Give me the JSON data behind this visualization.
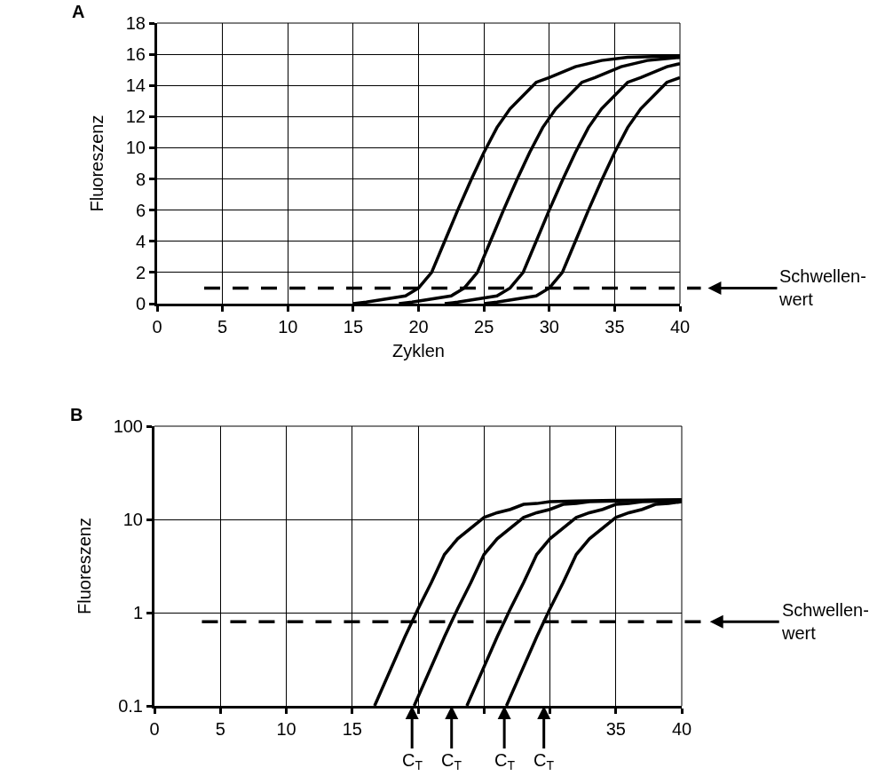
{
  "chart_data": [
    {
      "type": "line",
      "annotations": [
        "A"
      ],
      "xlabel": "Zyklen",
      "ylabel": "Fluoreszenz",
      "xlim": [
        0,
        40
      ],
      "ylim": [
        0,
        18
      ],
      "xticks": [
        0,
        5,
        10,
        15,
        20,
        25,
        30,
        35,
        40
      ],
      "yticks": [
        0,
        2,
        4,
        6,
        8,
        10,
        12,
        14,
        16,
        18
      ],
      "grid": true,
      "marker": "none",
      "line_style": "solid",
      "ref_lines": [
        {
          "axis": "y",
          "value": 1,
          "label": "Schwellen-\nwert",
          "line_style": "dashed",
          "color": "#000000"
        }
      ],
      "series": [
        {
          "color": "#000000",
          "x": [
            15,
            16,
            19,
            20,
            21,
            22,
            23,
            24,
            25,
            26,
            27,
            29,
            30,
            32,
            34,
            36,
            40
          ],
          "values": [
            0,
            0.1,
            0.5,
            1,
            2,
            4,
            6,
            7.9,
            9.7,
            11.3,
            12.5,
            14.2,
            14.5,
            15.2,
            15.6,
            15.8,
            15.9
          ]
        },
        {
          "color": "#000000",
          "x": [
            18.5,
            19.5,
            22.5,
            23.5,
            24.5,
            25.5,
            26.5,
            27.5,
            28.5,
            29.5,
            30.5,
            32.5,
            33.5,
            35.5,
            37.5,
            40
          ],
          "values": [
            0,
            0.1,
            0.5,
            1,
            2,
            4,
            6,
            7.9,
            9.7,
            11.3,
            12.5,
            14.2,
            14.5,
            15.2,
            15.6,
            15.8
          ]
        },
        {
          "color": "#000000",
          "x": [
            22,
            23,
            26,
            27,
            28,
            29,
            30,
            31,
            32,
            33,
            34,
            36,
            37,
            39,
            40
          ],
          "values": [
            0,
            0.1,
            0.5,
            1,
            2,
            4,
            6,
            7.9,
            9.7,
            11.3,
            12.5,
            14.2,
            14.5,
            15.2,
            15.4
          ]
        },
        {
          "color": "#000000",
          "x": [
            25,
            26,
            29,
            30,
            31,
            32,
            33,
            34,
            35,
            36,
            37,
            39,
            40
          ],
          "values": [
            0,
            0.1,
            0.5,
            1,
            2,
            4,
            6,
            7.9,
            9.7,
            11.3,
            12.5,
            14.2,
            14.5
          ]
        }
      ]
    },
    {
      "type": "line",
      "annotations": [
        "B",
        "C$_{T}$",
        "C$_{T}$",
        "C$_{T}$",
        "C$_{T}$"
      ],
      "ylabel": "Fluoreszenz",
      "log": "y",
      "xlim": [
        0,
        40
      ],
      "ylim": [
        0.1,
        100
      ],
      "xticks": [
        0,
        5,
        10,
        15,
        {
          "value": 20,
          "label": null
        },
        {
          "value": 25,
          "label": null
        },
        {
          "value": 30,
          "label": null
        },
        35,
        40
      ],
      "yticks": [
        0.1,
        1,
        10,
        100
      ],
      "grid": true,
      "marker": "none",
      "line_style": "solid",
      "ref_lines": [
        {
          "axis": "y",
          "value": 0.8,
          "label": "Schwellen-\nwert",
          "line_style": "dashed",
          "color": "#000000"
        }
      ],
      "series": [
        {
          "color": "#000000",
          "x": [
            16.7,
            19,
            20,
            21,
            22,
            23,
            25,
            26,
            27,
            28,
            29,
            30,
            32,
            35,
            40
          ],
          "values": [
            0.1,
            0.55,
            1.1,
            2.1,
            4.2,
            6.2,
            10.5,
            11.8,
            12.8,
            14.5,
            14.8,
            15.5,
            15.8,
            16,
            16.2
          ]
        },
        {
          "color": "#000000",
          "x": [
            19.7,
            22,
            23,
            24,
            25,
            26,
            28,
            29,
            30,
            31,
            32,
            33,
            35,
            38,
            40
          ],
          "values": [
            0.1,
            0.55,
            1.1,
            2.1,
            4.2,
            6.2,
            10.5,
            11.8,
            12.8,
            14.5,
            14.8,
            15.5,
            15.8,
            16,
            16.2
          ]
        },
        {
          "color": "#000000",
          "x": [
            23.7,
            26,
            27,
            28,
            29,
            30,
            32,
            33,
            34,
            35,
            36,
            37,
            39,
            40
          ],
          "values": [
            0.1,
            0.55,
            1.1,
            2.1,
            4.2,
            6.2,
            10.5,
            11.8,
            12.8,
            14.5,
            14.8,
            15.5,
            15.8,
            16
          ]
        },
        {
          "color": "#000000",
          "x": [
            26.7,
            29,
            30,
            31,
            32,
            33,
            35,
            36,
            37,
            38,
            39,
            40
          ],
          "values": [
            0.1,
            0.55,
            1.1,
            2.1,
            4.2,
            6.2,
            10.5,
            11.8,
            12.8,
            14.5,
            14.8,
            15.5
          ]
        }
      ]
    }
  ]
}
